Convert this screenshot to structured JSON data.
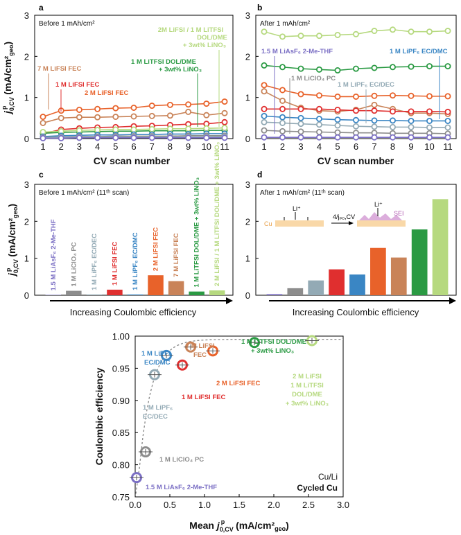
{
  "palette": {
    "LiAsF6": "#7b6fc4",
    "LiClO4": "#8d8d8d",
    "LiPF6_ECDEC": "#93aab5",
    "LiFSI_1M": "#e02f2f",
    "LiPF6_ECDMC": "#3a86c4",
    "LiFSI_2M": "#e8622a",
    "LiFSI_7M": "#c98358",
    "LiTFSI_1M": "#2a9a43",
    "Mix_2M": "#b6d97f"
  },
  "chart_data": [
    {
      "id": "a",
      "type": "line",
      "panel_label": "a",
      "inset_label": "Before 1 mAh/cm²",
      "xlabel": "CV scan number",
      "ylabel_main": "j",
      "ylabel_sup": "p",
      "ylabel_sub": "0,CV",
      "ylabel_unit_pre": " (mA/cm",
      "ylabel_unit_sub": "geo",
      "ylabel_unit_post": ")",
      "x": [
        1,
        2,
        3,
        4,
        5,
        6,
        7,
        8,
        9,
        10,
        11
      ],
      "ylim": [
        0,
        3
      ],
      "xticks": [
        "1",
        "2",
        "3",
        "4",
        "5",
        "6",
        "7",
        "8",
        "9",
        "10",
        "11"
      ],
      "yticks": [
        "0",
        "1",
        "2",
        "3"
      ],
      "series": [
        {
          "name": "7M LiFSI FEC",
          "color_key": "LiFSI_7M",
          "values": [
            0.38,
            0.5,
            0.52,
            0.52,
            0.53,
            0.54,
            0.55,
            0.56,
            0.65,
            0.57,
            0.62
          ]
        },
        {
          "name": "2M LiFSI FEC",
          "color_key": "LiFSI_2M",
          "values": [
            0.53,
            0.68,
            0.7,
            0.72,
            0.74,
            0.75,
            0.8,
            0.82,
            0.83,
            0.85,
            0.9
          ]
        },
        {
          "name": "1M LiFSI FEC",
          "color_key": "LiFSI_1M",
          "values": [
            0.12,
            0.22,
            0.25,
            0.27,
            0.28,
            0.3,
            0.31,
            0.33,
            0.35,
            0.36,
            0.4
          ]
        },
        {
          "name": "1M LiTFSI DOL/DME",
          "color_key": "LiTFSI_1M",
          "values": [
            0.13,
            0.15,
            0.16,
            0.17,
            0.18,
            0.18,
            0.19,
            0.19,
            0.19,
            0.2,
            0.2
          ]
        },
        {
          "name": "2M LiFSI/1M LiTFSI",
          "color_key": "Mix_2M",
          "values": [
            0.16,
            0.18,
            0.2,
            0.21,
            0.22,
            0.22,
            0.23,
            0.24,
            0.24,
            0.25,
            0.26
          ]
        },
        {
          "name": "1M LiPF6 EC/DMC",
          "color_key": "LiPF6_ECDMC",
          "values": [
            0.05,
            0.07,
            0.08,
            0.09,
            0.09,
            0.1,
            0.1,
            0.11,
            0.11,
            0.12,
            0.12
          ]
        },
        {
          "name": "1M LiClO4 PC",
          "color_key": "LiClO4",
          "values": [
            0.03,
            0.04,
            0.05,
            0.05,
            0.06,
            0.06,
            0.06,
            0.06,
            0.07,
            0.07,
            0.07
          ]
        },
        {
          "name": "1M LiPF6 EC/DEC",
          "color_key": "LiPF6_ECDEC",
          "values": [
            0.02,
            0.03,
            0.03,
            0.03,
            0.04,
            0.04,
            0.04,
            0.04,
            0.04,
            0.04,
            0.05
          ]
        },
        {
          "name": "1.5M LiAsF6",
          "color_key": "LiAsF6",
          "values": [
            0.01,
            0.01,
            0.02,
            0.02,
            0.02,
            0.02,
            0.02,
            0.02,
            0.02,
            0.02,
            0.02
          ]
        }
      ],
      "annotations": {
        "a7m": "7 M LiFSI FEC",
        "a1m": "1 M LiFSI FEC",
        "a2m": "2 M LiFSI FEC",
        "atf1": "1 M LiTFSI DOL/DME",
        "atf2": "+ 3wt% LiNO₃",
        "amx1": "2M LiFSI / 1 M LiTFSI",
        "amx2": "DOL/DME",
        "amx3": "+ 3wt% LiNO₃"
      }
    },
    {
      "id": "b",
      "type": "line",
      "panel_label": "b",
      "inset_label": "After 1 mAh/cm²",
      "xlabel": "CV scan number",
      "x": [
        1,
        2,
        3,
        4,
        5,
        6,
        7,
        8,
        9,
        10,
        11
      ],
      "ylim": [
        0,
        3
      ],
      "xticks": [
        "1",
        "2",
        "3",
        "4",
        "5",
        "6",
        "7",
        "8",
        "9",
        "10",
        "11"
      ],
      "yticks": [
        "0",
        "1",
        "2",
        "3"
      ],
      "series": [
        {
          "name": "2M LiFSI/1M LiTFSI",
          "color_key": "Mix_2M",
          "values": [
            2.6,
            2.48,
            2.5,
            2.5,
            2.52,
            2.54,
            2.62,
            2.65,
            2.6,
            2.6,
            2.62
          ]
        },
        {
          "name": "1M LiTFSI DOL/DME",
          "color_key": "LiTFSI_1M",
          "values": [
            1.78,
            1.74,
            1.7,
            1.68,
            1.66,
            1.7,
            1.72,
            1.74,
            1.75,
            1.76,
            1.76
          ]
        },
        {
          "name": "2M LiFSI FEC",
          "color_key": "LiFSI_2M",
          "values": [
            1.3,
            1.18,
            1.08,
            1.05,
            1.02,
            1.02,
            1.04,
            1.05,
            1.04,
            1.03,
            1.03
          ]
        },
        {
          "name": "7M LiFSI FEC",
          "color_key": "LiFSI_7M",
          "values": [
            1.15,
            0.92,
            0.75,
            0.68,
            0.66,
            0.7,
            0.82,
            0.72,
            0.62,
            0.62,
            0.6
          ]
        },
        {
          "name": "1M LiFSI FEC",
          "color_key": "LiFSI_1M",
          "values": [
            0.72,
            0.72,
            0.72,
            0.72,
            0.7,
            0.68,
            0.68,
            0.66,
            0.66,
            0.66,
            0.65
          ]
        },
        {
          "name": "1M LiPF6 EC/DMC",
          "color_key": "LiPF6_ECDMC",
          "values": [
            0.55,
            0.52,
            0.5,
            0.48,
            0.46,
            0.45,
            0.44,
            0.44,
            0.43,
            0.43,
            0.43
          ]
        },
        {
          "name": "1M LiPF6 EC/DEC",
          "color_key": "LiPF6_ECDEC",
          "values": [
            0.4,
            0.38,
            0.36,
            0.34,
            0.32,
            0.3,
            0.29,
            0.28,
            0.28,
            0.27,
            0.27
          ]
        },
        {
          "name": "1M LiClO4 PC",
          "color_key": "LiClO4",
          "values": [
            0.2,
            0.18,
            0.17,
            0.16,
            0.15,
            0.14,
            0.14,
            0.13,
            0.13,
            0.13,
            0.12
          ]
        },
        {
          "name": "1.5M LiAsF6",
          "color_key": "LiAsF6",
          "values": [
            0.03,
            0.03,
            0.03,
            0.03,
            0.03,
            0.03,
            0.03,
            0.03,
            0.03,
            0.03,
            0.03
          ]
        }
      ],
      "annotations": {
        "bas": "1.5 M LiAsF₆ 2-Me-THF",
        "bcl": "1 M LiClO₄ PC",
        "bdec": "1 M LiPF₆ EC/DEC",
        "bdmc": "1 M LiPF₆ EC/DMC"
      }
    },
    {
      "id": "c",
      "type": "bar",
      "panel_label": "c",
      "inset_label": "Before 1 mAh/cm² (11ᵗʰ scan)",
      "xlabel": "Increasing Coulombic efficiency",
      "ylim": [
        0,
        3
      ],
      "yticks": [
        "0",
        "1",
        "2",
        "3"
      ],
      "categories": [
        "1.5 M LiAsF₆ 2-Me-THF",
        "1 M LiClO₄ PC",
        "1 M LiPF₆ EC/DEC",
        "1 M LiFSI FEC",
        "1 M LiPF₆ EC/DMC",
        "2 M LiFSI FEC",
        "7 M LiFSI FEC",
        "1 M LiTFSI DOL/DME + 3wt% LiNO₃",
        "2 M LiFSI / 1 M LiTFSI DOL/DME + 3wt% LiNO₃"
      ],
      "color_keys": [
        "LiAsF6",
        "LiClO4",
        "LiPF6_ECDEC",
        "LiFSI_1M",
        "LiPF6_ECDMC",
        "LiFSI_2M",
        "LiFSI_7M",
        "LiTFSI_1M",
        "Mix_2M"
      ],
      "values": [
        0.01,
        0.12,
        0.02,
        0.15,
        0.02,
        0.54,
        0.38,
        0.1,
        0.13
      ]
    },
    {
      "id": "d",
      "type": "bar",
      "panel_label": "d",
      "inset_label": "After 1 mAh/cm² (11ᵗʰ scan)",
      "xlabel": "Increasing Coulombic efficiency",
      "ylim": [
        0,
        3
      ],
      "yticks": [
        "0",
        "1",
        "2",
        "3"
      ],
      "color_keys": [
        "LiAsF6",
        "LiClO4",
        "LiPF6_ECDEC",
        "LiFSI_1M",
        "LiPF6_ECDMC",
        "LiFSI_2M",
        "LiFSI_7M",
        "LiTFSI_1M",
        "Mix_2M"
      ],
      "values": [
        0.03,
        0.19,
        0.4,
        0.7,
        0.56,
        1.28,
        1.02,
        1.78,
        2.6
      ],
      "schematic": {
        "cu": "Cu",
        "li1": "Li⁺",
        "li2": "Li⁺",
        "arrow": "4/jₚ₀,CV",
        "sei": "SEI"
      }
    },
    {
      "id": "e",
      "type": "scatter",
      "xlabel_pre": "Mean ",
      "xlabel_unit": " (mA/cm²",
      "xlabel_geo": "geo",
      "ylabel": "Coulombic efficiency",
      "xlim": [
        0,
        3
      ],
      "ylim": [
        0.75,
        1.0
      ],
      "xticks": [
        "0.0",
        "0.5",
        "1.0",
        "1.5",
        "2.0",
        "2.5",
        "3.0"
      ],
      "yticks": [
        "0.75",
        "0.80",
        "0.85",
        "0.90",
        "0.95",
        "1.00"
      ],
      "points": [
        {
          "name": "1.5 M LiAsF₆ 2-Me-THF",
          "color_key": "LiAsF6",
          "x": 0.02,
          "y": 0.78
        },
        {
          "name": "1 M LiClO₄ PC",
          "color_key": "LiClO4",
          "x": 0.15,
          "y": 0.82
        },
        {
          "name": "1 M LiPF₆ EC/DEC",
          "color_key": "LiPF6_ECDEC",
          "x": 0.28,
          "y": 0.94
        },
        {
          "name": "1 M LiPF₆ EC/DMC",
          "color_key": "LiPF6_ECDMC",
          "x": 0.45,
          "y": 0.97
        },
        {
          "name": "1 M LiFSI FEC",
          "color_key": "LiFSI_1M",
          "x": 0.68,
          "y": 0.955
        },
        {
          "name": "7 M LiFSI FEC",
          "color_key": "LiFSI_7M",
          "x": 0.8,
          "y": 0.983
        },
        {
          "name": "2 M LiFSI FEC",
          "color_key": "LiFSI_2M",
          "x": 1.12,
          "y": 0.977
        },
        {
          "name": "1 M LiTFSI DOL/DME + 3wt% LiNO₃",
          "color_key": "LiTFSI_1M",
          "x": 1.72,
          "y": 0.99
        },
        {
          "name": "2 M LiFSI 1 M LiTFSI DOL/DME + 3wt% LiNO₃",
          "color_key": "Mix_2M",
          "x": 2.55,
          "y": 0.993
        }
      ],
      "labels": {
        "asf": "1.5 M LiAsF₆ 2-Me-THF",
        "clo": "1 M LiClO₄ PC",
        "dec1": "1 M LiPF₆",
        "dec2": "EC/DEC",
        "dmc1": "1 M LiPF₆",
        "dmc2": "EC/DMC",
        "f1": "1 M LiFSI FEC",
        "f7a": "7 M LiFSI",
        "f7b": "FEC",
        "f2": "2 M LiFSI FEC",
        "tf1": "1 M LiTFSI DOL/DME",
        "tf2": "+ 3wt% LiNO₃",
        "mx1": "2 M LiFSI",
        "mx2": "1 M LiTFSI",
        "mx3": "DOL/DME",
        "mx4": "+ 3wt% LiNO₃",
        "cuLi": "Cu/Li",
        "cycled": "Cycled Cu"
      }
    }
  ]
}
